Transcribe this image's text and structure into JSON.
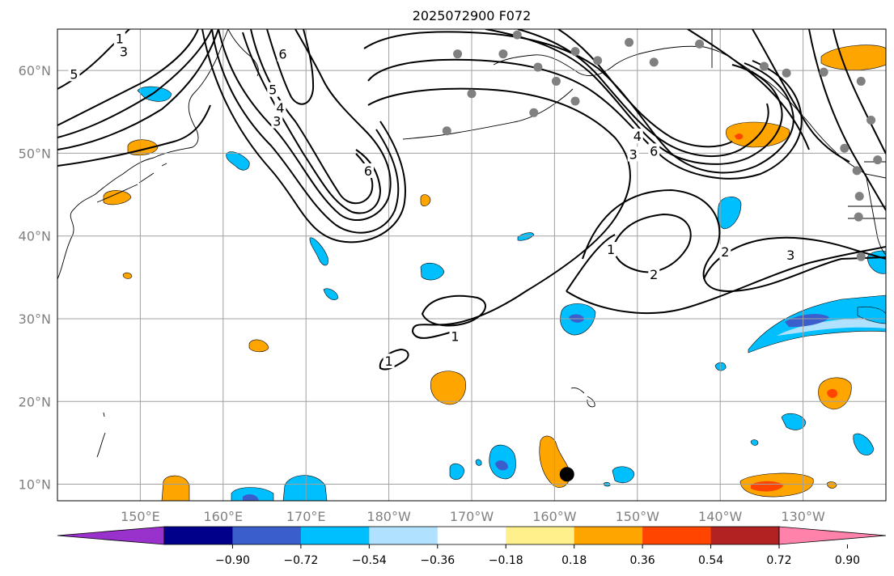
{
  "title": "2025072900 F072",
  "map": {
    "lon_range": [
      140,
      240
    ],
    "lat_range": [
      8,
      65
    ],
    "grid": true,
    "x_ticks": [
      {
        "lon": 150,
        "label": "150°E"
      },
      {
        "lon": 160,
        "label": "160°E"
      },
      {
        "lon": 170,
        "label": "170°E"
      },
      {
        "lon": 180,
        "label": "180°W"
      },
      {
        "lon": 190,
        "label": "170°W"
      },
      {
        "lon": 200,
        "label": "160°W"
      },
      {
        "lon": 210,
        "label": "150°W"
      },
      {
        "lon": 220,
        "label": "140°W"
      },
      {
        "lon": 230,
        "label": "130°W"
      }
    ],
    "y_ticks": [
      {
        "lat": 10,
        "label": "10°N"
      },
      {
        "lat": 20,
        "label": "20°N"
      },
      {
        "lat": 30,
        "label": "30°N"
      },
      {
        "lat": 40,
        "label": "40°N"
      },
      {
        "lat": 50,
        "label": "50°N"
      },
      {
        "lat": 60,
        "label": "60°N"
      }
    ],
    "contour_labels": [
      {
        "text": "1",
        "lon": 147.5,
        "lat": 63.8
      },
      {
        "text": "3",
        "lon": 148.0,
        "lat": 62.2
      },
      {
        "text": "5",
        "lon": 142.0,
        "lat": 59.5
      },
      {
        "text": "6",
        "lon": 167.2,
        "lat": 61.9
      },
      {
        "text": "5",
        "lon": 166.0,
        "lat": 57.6
      },
      {
        "text": "3",
        "lon": 166.5,
        "lat": 53.8
      },
      {
        "text": "4",
        "lon": 166.9,
        "lat": 55.4
      },
      {
        "text": "6",
        "lon": 177.5,
        "lat": 47.8
      },
      {
        "text": "1",
        "lon": 180.0,
        "lat": 24.8
      },
      {
        "text": "1",
        "lon": 188.0,
        "lat": 27.8
      },
      {
        "text": "1",
        "lon": 206.8,
        "lat": 38.3
      },
      {
        "text": "2",
        "lon": 212.0,
        "lat": 35.3
      },
      {
        "text": "2",
        "lon": 220.6,
        "lat": 38.0
      },
      {
        "text": "3",
        "lon": 228.5,
        "lat": 37.6
      },
      {
        "text": "4",
        "lon": 210.0,
        "lat": 52.0
      },
      {
        "text": "3",
        "lon": 209.5,
        "lat": 49.8
      },
      {
        "text": "6",
        "lon": 212.0,
        "lat": 50.2
      }
    ],
    "station_dots": [
      [
        195.5,
        64.3
      ],
      [
        202.5,
        62.3
      ],
      [
        198.0,
        60.4
      ],
      [
        205.2,
        61.2
      ],
      [
        209.0,
        63.4
      ],
      [
        193.8,
        62.0
      ],
      [
        200.2,
        58.7
      ],
      [
        202.5,
        56.3
      ],
      [
        197.5,
        54.9
      ],
      [
        190.0,
        57.2
      ],
      [
        187.0,
        52.7
      ],
      [
        212.0,
        61.0
      ],
      [
        217.5,
        63.2
      ],
      [
        225.3,
        60.5
      ],
      [
        228.0,
        59.7
      ],
      [
        232.5,
        59.8
      ],
      [
        237.0,
        58.7
      ],
      [
        238.2,
        54.0
      ],
      [
        235.0,
        50.6
      ],
      [
        239.0,
        49.2
      ],
      [
        236.5,
        47.9
      ],
      [
        236.8,
        44.8
      ],
      [
        236.7,
        42.3
      ],
      [
        237.0,
        37.5
      ],
      [
        188.3,
        62.0
      ]
    ],
    "marker": {
      "lon": 201.5,
      "lat": 11.2
    }
  },
  "colorbar": {
    "colors": [
      "#9932cc",
      "#00008b",
      "#3a5fcd",
      "#00bfff",
      "#b0e2ff",
      "#ffffff",
      "#fff08c",
      "#ffa500",
      "#ff4500",
      "#b22222",
      "#ff82ab"
    ],
    "labels": [
      "−0.90",
      "−0.72",
      "−0.54",
      "−0.36",
      "−0.18",
      "0.18",
      "0.36",
      "0.54",
      "0.72",
      "0.90"
    ]
  }
}
